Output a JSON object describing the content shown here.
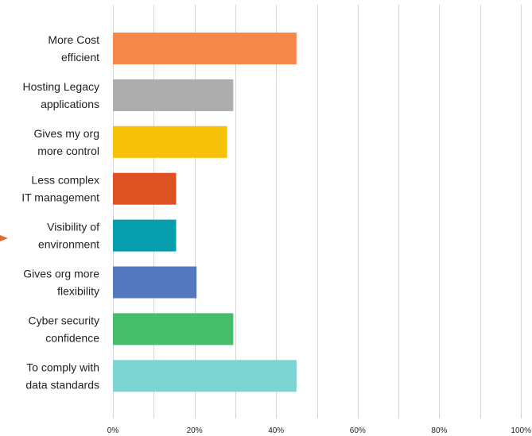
{
  "chart_data": {
    "type": "bar",
    "orientation": "horizontal",
    "categories": [
      [
        "More Cost",
        "efficient"
      ],
      [
        "Hosting Legacy",
        "applications"
      ],
      [
        "Gives my org",
        "more control"
      ],
      [
        "Less complex",
        "IT management"
      ],
      [
        "Visibility of",
        "environment"
      ],
      [
        "Gives org more",
        "flexibility"
      ],
      [
        "Cyber security",
        "confidence"
      ],
      [
        "To comply with",
        "data standards"
      ]
    ],
    "values": [
      45,
      29.5,
      28,
      15.5,
      15.5,
      20.5,
      29.5,
      45
    ],
    "colors": [
      "#F5894A",
      "#ADADAD",
      "#F7C10A",
      "#DE5222",
      "#069DAC",
      "#5577BD",
      "#46BD6A",
      "#7CD4D3"
    ],
    "xlim": [
      0,
      100
    ],
    "xticks": [
      0,
      20,
      40,
      60,
      80,
      100
    ],
    "tick_labels": [
      "0%",
      "20%",
      "40%",
      "60%",
      "80%",
      "100%"
    ],
    "grid": true
  }
}
